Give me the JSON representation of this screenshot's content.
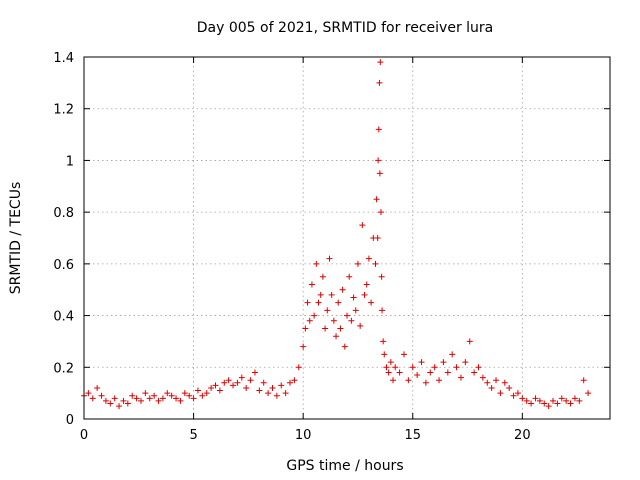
{
  "chart_data": {
    "type": "scatter",
    "title": "Day 005 of 2021, SRMTID for receiver lura",
    "xlabel": "GPS time / hours",
    "ylabel": "SRMTID / TECUs",
    "xlim": [
      0,
      24
    ],
    "ylim": [
      0,
      1.4
    ],
    "xticks": [
      0,
      5,
      10,
      15,
      20
    ],
    "xtick_labels": [
      "0",
      "5",
      "10",
      "15",
      "20"
    ],
    "yticks": [
      0,
      0.2,
      0.4,
      0.6,
      0.8,
      1,
      1.2,
      1.4
    ],
    "ytick_labels": [
      "0",
      "0.2",
      "0.4",
      "0.6",
      "0.8",
      "1",
      "1.2",
      "1.4"
    ],
    "grid": true,
    "marker": "plus",
    "color": "#e00000",
    "series": [
      {
        "name": "SRMTID",
        "x": [
          0.0,
          0.2,
          0.4,
          0.6,
          0.8,
          1.0,
          1.2,
          1.4,
          1.6,
          1.8,
          2.0,
          2.2,
          2.4,
          2.6,
          2.8,
          3.0,
          3.2,
          3.4,
          3.6,
          3.8,
          4.0,
          4.2,
          4.4,
          4.6,
          4.8,
          5.0,
          5.2,
          5.4,
          5.6,
          5.8,
          6.0,
          6.2,
          6.4,
          6.6,
          6.8,
          7.0,
          7.2,
          7.4,
          7.6,
          7.8,
          8.0,
          8.2,
          8.4,
          8.6,
          8.8,
          9.0,
          9.2,
          9.4,
          9.6,
          9.8,
          10.0,
          10.1,
          10.2,
          10.3,
          10.4,
          10.5,
          10.6,
          10.7,
          10.8,
          10.9,
          11.0,
          11.1,
          11.2,
          11.3,
          11.4,
          11.5,
          11.6,
          11.7,
          11.8,
          11.9,
          12.0,
          12.1,
          12.2,
          12.3,
          12.4,
          12.5,
          12.6,
          12.7,
          12.8,
          12.9,
          13.0,
          13.1,
          13.2,
          13.3,
          13.35,
          13.4,
          13.42,
          13.45,
          13.48,
          13.5,
          13.52,
          13.55,
          13.58,
          13.6,
          13.65,
          13.7,
          13.8,
          13.9,
          14.0,
          14.1,
          14.2,
          14.4,
          14.6,
          14.8,
          15.0,
          15.2,
          15.4,
          15.6,
          15.8,
          16.0,
          16.2,
          16.4,
          16.6,
          16.8,
          17.0,
          17.2,
          17.4,
          17.6,
          17.8,
          18.0,
          18.2,
          18.4,
          18.6,
          18.8,
          19.0,
          19.2,
          19.4,
          19.6,
          19.8,
          20.0,
          20.2,
          20.4,
          20.6,
          20.8,
          21.0,
          21.2,
          21.4,
          21.6,
          21.8,
          22.0,
          22.2,
          22.4,
          22.6,
          22.8,
          23.0
        ],
        "y": [
          0.09,
          0.1,
          0.08,
          0.12,
          0.09,
          0.07,
          0.06,
          0.08,
          0.05,
          0.07,
          0.06,
          0.09,
          0.08,
          0.07,
          0.1,
          0.08,
          0.09,
          0.07,
          0.08,
          0.1,
          0.09,
          0.08,
          0.07,
          0.1,
          0.09,
          0.08,
          0.11,
          0.09,
          0.1,
          0.12,
          0.13,
          0.11,
          0.14,
          0.15,
          0.13,
          0.14,
          0.16,
          0.12,
          0.15,
          0.18,
          0.11,
          0.14,
          0.1,
          0.12,
          0.09,
          0.13,
          0.1,
          0.14,
          0.15,
          0.2,
          0.28,
          0.35,
          0.45,
          0.38,
          0.52,
          0.4,
          0.6,
          0.45,
          0.48,
          0.55,
          0.35,
          0.42,
          0.62,
          0.48,
          0.38,
          0.32,
          0.45,
          0.35,
          0.5,
          0.28,
          0.4,
          0.55,
          0.38,
          0.47,
          0.42,
          0.6,
          0.36,
          0.75,
          0.48,
          0.52,
          0.62,
          0.45,
          0.7,
          0.6,
          0.85,
          0.7,
          1.0,
          1.12,
          1.3,
          0.95,
          1.38,
          0.8,
          0.55,
          0.42,
          0.3,
          0.25,
          0.2,
          0.18,
          0.22,
          0.15,
          0.2,
          0.18,
          0.25,
          0.15,
          0.2,
          0.17,
          0.22,
          0.14,
          0.18,
          0.2,
          0.15,
          0.22,
          0.18,
          0.25,
          0.2,
          0.16,
          0.22,
          0.3,
          0.18,
          0.2,
          0.16,
          0.14,
          0.12,
          0.15,
          0.1,
          0.14,
          0.12,
          0.09,
          0.1,
          0.08,
          0.07,
          0.06,
          0.08,
          0.07,
          0.06,
          0.05,
          0.07,
          0.06,
          0.08,
          0.07,
          0.06,
          0.08,
          0.07,
          0.15,
          0.1
        ]
      }
    ]
  }
}
